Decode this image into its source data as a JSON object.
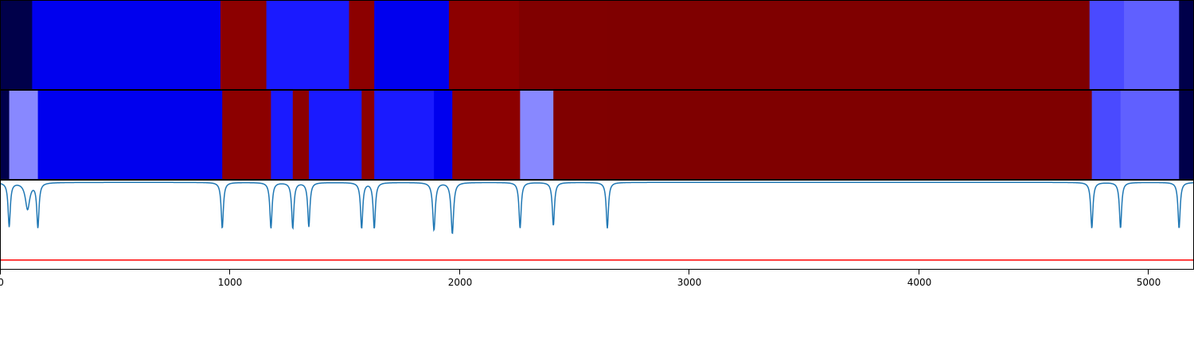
{
  "chart_data": [
    {
      "type": "heatmap",
      "colors": {
        "dark": "#00004a",
        "blue": "#0000ee",
        "blue_light": "#1a1aff",
        "red": "#8c0000",
        "red_dark": "#800000",
        "red_darker": "#7f0000",
        "indigo": "#4a4aff",
        "periwinkle": "#6060ff",
        "lavender": "#8888ff"
      },
      "segments": [
        {
          "start": 0,
          "end": 140,
          "color": "dark"
        },
        {
          "start": 140,
          "end": 960,
          "color": "blue"
        },
        {
          "start": 960,
          "end": 1160,
          "color": "red"
        },
        {
          "start": 1160,
          "end": 1520,
          "color": "blue_light"
        },
        {
          "start": 1520,
          "end": 1630,
          "color": "red"
        },
        {
          "start": 1630,
          "end": 1955,
          "color": "blue"
        },
        {
          "start": 1955,
          "end": 2260,
          "color": "red"
        },
        {
          "start": 2260,
          "end": 2640,
          "color": "red_dark"
        },
        {
          "start": 2640,
          "end": 4745,
          "color": "red_darker"
        },
        {
          "start": 4745,
          "end": 4895,
          "color": "indigo"
        },
        {
          "start": 4895,
          "end": 5135,
          "color": "periwinkle"
        },
        {
          "start": 5135,
          "end": 5200,
          "color": "dark"
        }
      ]
    },
    {
      "type": "heatmap",
      "segments": [
        {
          "start": 0,
          "end": 40,
          "color": "dark"
        },
        {
          "start": 40,
          "end": 165,
          "color": "lavender"
        },
        {
          "start": 165,
          "end": 968,
          "color": "blue"
        },
        {
          "start": 968,
          "end": 1180,
          "color": "red"
        },
        {
          "start": 1180,
          "end": 1275,
          "color": "blue_light"
        },
        {
          "start": 1275,
          "end": 1345,
          "color": "red"
        },
        {
          "start": 1345,
          "end": 1575,
          "color": "blue_light"
        },
        {
          "start": 1575,
          "end": 1630,
          "color": "red"
        },
        {
          "start": 1630,
          "end": 1890,
          "color": "blue_light"
        },
        {
          "start": 1890,
          "end": 1970,
          "color": "blue"
        },
        {
          "start": 1970,
          "end": 2265,
          "color": "red"
        },
        {
          "start": 2265,
          "end": 2410,
          "color": "lavender"
        },
        {
          "start": 2410,
          "end": 2645,
          "color": "red_dark"
        },
        {
          "start": 2645,
          "end": 4755,
          "color": "red_darker"
        },
        {
          "start": 4755,
          "end": 4880,
          "color": "indigo"
        },
        {
          "start": 4880,
          "end": 5135,
          "color": "periwinkle"
        },
        {
          "start": 5135,
          "end": 5200,
          "color": "dark"
        }
      ]
    },
    {
      "type": "line",
      "line_color": "#1f77b4",
      "threshold_color": "#ff0000",
      "baseline": 0.98,
      "threshold": 0.1,
      "ylim": [
        0,
        1
      ],
      "dips": [
        {
          "x": 40,
          "depth": 0.5,
          "width": 14
        },
        {
          "x": 120,
          "depth": 0.3,
          "width": 28
        },
        {
          "x": 165,
          "depth": 0.5,
          "width": 14
        },
        {
          "x": 968,
          "depth": 0.52,
          "width": 14
        },
        {
          "x": 1180,
          "depth": 0.52,
          "width": 14
        },
        {
          "x": 1275,
          "depth": 0.52,
          "width": 14
        },
        {
          "x": 1345,
          "depth": 0.5,
          "width": 14
        },
        {
          "x": 1575,
          "depth": 0.52,
          "width": 14
        },
        {
          "x": 1630,
          "depth": 0.52,
          "width": 14
        },
        {
          "x": 1890,
          "depth": 0.54,
          "width": 16
        },
        {
          "x": 1970,
          "depth": 0.58,
          "width": 16
        },
        {
          "x": 2265,
          "depth": 0.52,
          "width": 14
        },
        {
          "x": 2410,
          "depth": 0.49,
          "width": 14
        },
        {
          "x": 2645,
          "depth": 0.52,
          "width": 14
        },
        {
          "x": 4755,
          "depth": 0.52,
          "width": 14
        },
        {
          "x": 4880,
          "depth": 0.52,
          "width": 14
        },
        {
          "x": 5135,
          "depth": 0.52,
          "width": 14
        }
      ]
    }
  ],
  "x_axis": {
    "range": [
      0,
      5200
    ],
    "ticks": [
      0,
      1000,
      2000,
      3000,
      4000,
      5000
    ],
    "tick_labels": [
      "0",
      "1000",
      "2000",
      "3000",
      "4000",
      "5000"
    ]
  }
}
